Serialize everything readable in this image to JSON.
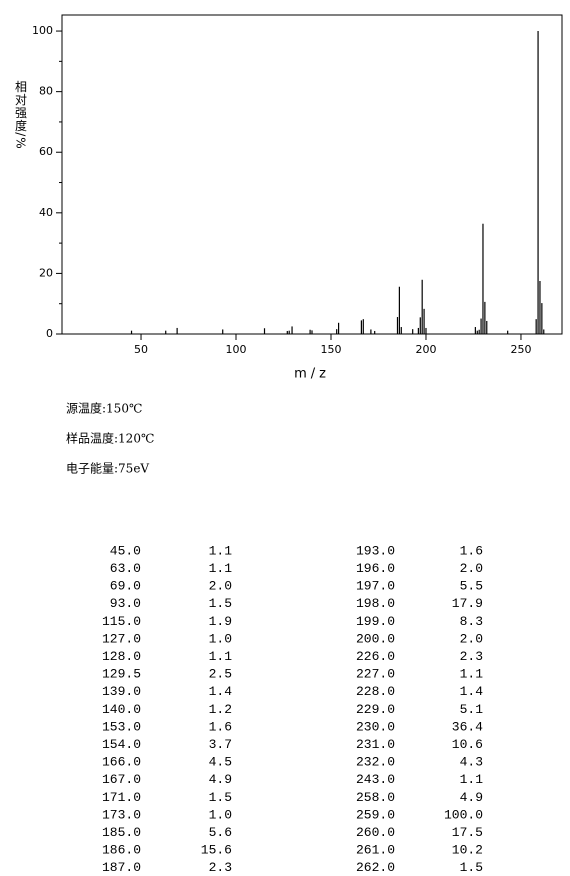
{
  "chart_data": {
    "type": "bar",
    "y_label": "相对强度/%",
    "x_label": "m/z",
    "x": [
      45.0,
      63.0,
      69.0,
      93.0,
      115.0,
      127.0,
      128.0,
      129.5,
      139.0,
      140.0,
      153.0,
      154.0,
      166.0,
      167.0,
      171.0,
      173.0,
      185.0,
      186.0,
      187.0,
      193.0,
      196.0,
      197.0,
      198.0,
      199.0,
      200.0,
      226.0,
      227.0,
      228.0,
      229.0,
      230.0,
      231.0,
      232.0,
      243.0,
      258.0,
      259.0,
      260.0,
      261.0,
      262.0
    ],
    "values": [
      1.1,
      1.1,
      2.0,
      1.5,
      1.9,
      1.0,
      1.1,
      2.5,
      1.4,
      1.2,
      1.6,
      3.7,
      4.5,
      4.9,
      1.5,
      1.0,
      5.6,
      15.6,
      2.3,
      1.6,
      2.0,
      5.5,
      17.9,
      8.3,
      2.0,
      2.3,
      1.1,
      1.4,
      5.1,
      36.4,
      10.6,
      4.3,
      1.1,
      4.9,
      100.0,
      17.5,
      10.2,
      1.5
    ],
    "color": "#000000",
    "xlim": [
      8.4,
      271.6
    ],
    "xticks": [
      50,
      100,
      150,
      200,
      250
    ],
    "ylim": [
      0,
      105.3
    ],
    "yticks": [
      0,
      20,
      40,
      60,
      80,
      100
    ],
    "yminorticks": [
      10,
      30,
      50,
      70,
      90
    ]
  },
  "conditions": [
    "源温度:150℃",
    "样品温度:120℃",
    "电子能量:75eV"
  ],
  "peak_table": {
    "rows": [
      [
        "45.0",
        "1.1"
      ],
      [
        "63.0",
        "1.1"
      ],
      [
        "69.0",
        "2.0"
      ],
      [
        "93.0",
        "1.5"
      ],
      [
        "115.0",
        "1.9"
      ],
      [
        "127.0",
        "1.0"
      ],
      [
        "128.0",
        "1.1"
      ],
      [
        "129.5",
        "2.5"
      ],
      [
        "139.0",
        "1.4"
      ],
      [
        "140.0",
        "1.2"
      ],
      [
        "153.0",
        "1.6"
      ],
      [
        "154.0",
        "3.7"
      ],
      [
        "166.0",
        "4.5"
      ],
      [
        "167.0",
        "4.9"
      ],
      [
        "171.0",
        "1.5"
      ],
      [
        "173.0",
        "1.0"
      ],
      [
        "185.0",
        "5.6"
      ],
      [
        "186.0",
        "15.6"
      ],
      [
        "187.0",
        "2.3"
      ],
      [
        "193.0",
        "1.6"
      ],
      [
        "196.0",
        "2.0"
      ],
      [
        "197.0",
        "5.5"
      ],
      [
        "198.0",
        "17.9"
      ],
      [
        "199.0",
        "8.3"
      ],
      [
        "200.0",
        "2.0"
      ],
      [
        "226.0",
        "2.3"
      ],
      [
        "227.0",
        "1.1"
      ],
      [
        "228.0",
        "1.4"
      ],
      [
        "229.0",
        "5.1"
      ],
      [
        "230.0",
        "36.4"
      ],
      [
        "231.0",
        "10.6"
      ],
      [
        "232.0",
        "4.3"
      ],
      [
        "243.0",
        "1.1"
      ],
      [
        "258.0",
        "4.9"
      ],
      [
        "259.0",
        "100.0"
      ],
      [
        "260.0",
        "17.5"
      ],
      [
        "261.0",
        "10.2"
      ],
      [
        "262.0",
        "1.5"
      ]
    ]
  }
}
